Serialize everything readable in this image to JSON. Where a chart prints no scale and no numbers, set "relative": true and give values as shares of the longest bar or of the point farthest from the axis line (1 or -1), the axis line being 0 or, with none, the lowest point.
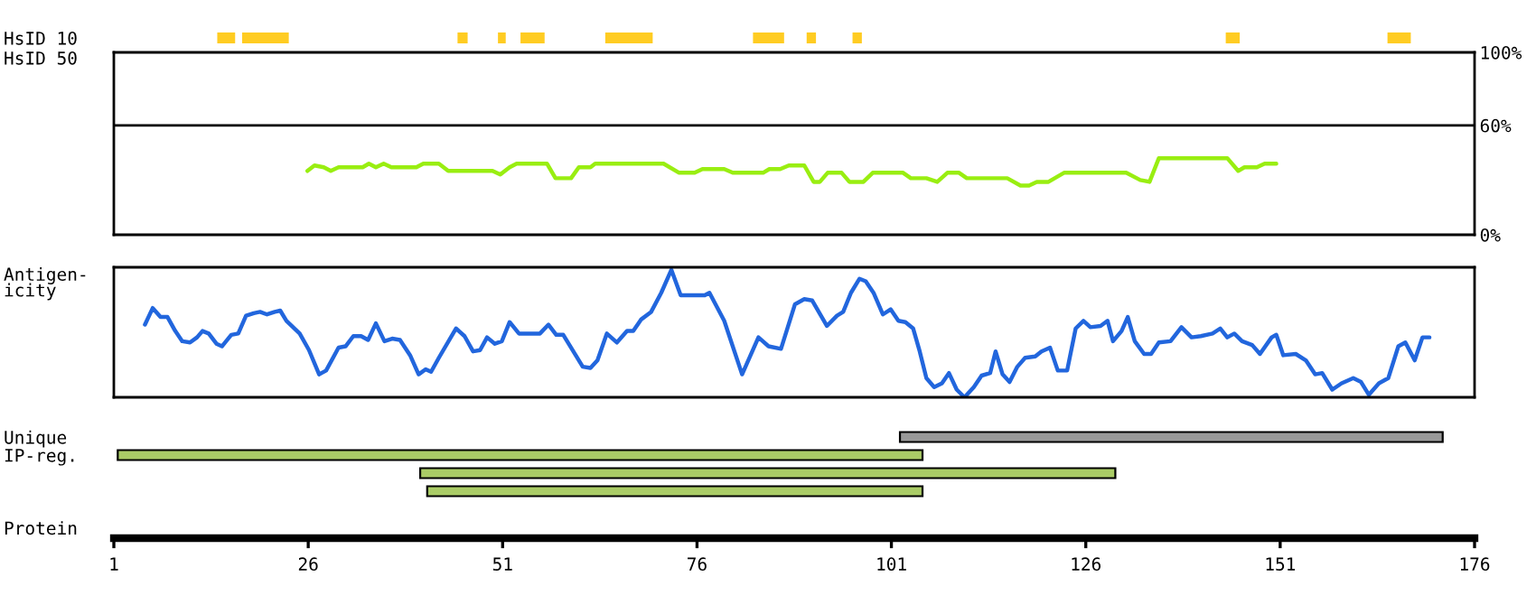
{
  "chart_data": [
    {
      "type": "bar",
      "orientation": "horizontal",
      "categories": [
        "HsID 10",
        "HsID 50"
      ],
      "xlim": [
        1,
        176
      ],
      "tick_labels": "y",
      "series": [
        {
          "color": "#ffcc22",
          "values": [
            2.3,
            null
          ],
          "base": [
            14.3,
            null
          ]
        },
        {
          "color": "#ffcc22",
          "values": [
            6,
            null
          ],
          "base": [
            17.5,
            null
          ]
        },
        {
          "color": "#ffcc22",
          "values": [
            1.3,
            null
          ],
          "base": [
            45.2,
            null
          ]
        },
        {
          "color": "#ffcc22",
          "values": [
            1,
            null
          ],
          "base": [
            50.4,
            null
          ]
        },
        {
          "color": "#ffcc22",
          "values": [
            3.1,
            null
          ],
          "base": [
            53.3,
            null
          ]
        },
        {
          "color": "#ffcc22",
          "values": [
            6.1,
            null
          ],
          "base": [
            64.2,
            null
          ]
        },
        {
          "color": "#ffcc22",
          "values": [
            4,
            null
          ],
          "base": [
            83.2,
            null
          ]
        },
        {
          "color": "#ffcc22",
          "values": [
            1.2,
            null
          ],
          "base": [
            90.1,
            null
          ]
        },
        {
          "color": "#ffcc22",
          "values": [
            1.2,
            null
          ],
          "base": [
            96,
            null
          ]
        },
        {
          "color": "#ffcc22",
          "values": [
            1.8,
            null
          ],
          "base": [
            144,
            null
          ]
        },
        {
          "color": "#ffcc22",
          "values": [
            3,
            null
          ],
          "base": [
            164.8,
            null
          ]
        }
      ]
    },
    {
      "type": "line",
      "xlim": [
        1,
        176
      ],
      "ylim": [
        0,
        100
      ],
      "yticks": [
        {
          "value": 0,
          "label": "0%"
        },
        {
          "value": 60,
          "label": "60%"
        },
        {
          "value": 100,
          "label": "100%"
        }
      ],
      "tick_labels": "y",
      "ref_lines": [
        {
          "axis": "y",
          "value": 60,
          "color": "#000000"
        }
      ],
      "x": [
        25.9,
        26.8,
        28.0,
        28.9,
        29.9,
        33.0,
        33.8,
        34.7,
        35.7,
        36.7,
        39.9,
        40.8,
        42.8,
        44.0,
        49.7,
        50.7,
        51.9,
        52.8,
        56.7,
        57.8,
        59.8,
        60.8,
        62.3,
        62.9,
        71.7,
        73.7,
        75.7,
        76.7,
        79.5,
        80.6,
        84.5,
        85.3,
        86.7,
        87.8,
        89.8,
        91.0,
        91.8,
        92.8,
        94.6,
        95.6,
        97.4,
        98.6,
        102.5,
        103.5,
        105.5,
        106.9,
        108.2,
        109.7,
        110.7,
        115.9,
        117.6,
        118.7,
        119.7,
        121.2,
        123.2,
        131.2,
        133.0,
        134.2,
        135.4,
        144.2,
        145.6,
        146.4,
        148.0,
        149.0,
        150.5
      ],
      "series": [
        {
          "color": "#99ee11",
          "values": [
            35,
            38,
            37,
            35,
            37,
            37,
            39,
            37,
            39,
            37,
            37,
            39,
            39,
            35,
            35,
            33,
            37,
            39,
            39,
            31,
            31,
            37,
            37,
            39,
            39,
            34,
            34,
            36,
            36,
            34,
            34,
            36,
            36,
            38,
            38,
            29,
            29,
            34,
            34,
            29,
            29,
            34,
            34,
            31,
            31,
            29,
            34,
            34,
            31,
            31,
            27,
            27,
            29,
            29,
            34,
            34,
            30,
            29,
            42,
            42,
            35,
            37,
            37,
            39,
            39
          ]
        }
      ]
    },
    {
      "type": "line",
      "relative": true,
      "ylabel": "Antigen-\nicity",
      "xlim": [
        1,
        176
      ],
      "tick_labels": false,
      "x": [
        5.0,
        6.0,
        7.0,
        7.9,
        8.9,
        9.8,
        10.8,
        11.7,
        12.4,
        13.2,
        14.2,
        14.9,
        16.1,
        17.0,
        18.0,
        19.0,
        19.8,
        20.7,
        21.7,
        22.4,
        23.2,
        24.9,
        26.1,
        27.4,
        28.3,
        29.9,
        30.8,
        31.8,
        32.8,
        33.7,
        34.7,
        35.8,
        36.8,
        37.8,
        39.1,
        40.2,
        41.1,
        41.8,
        42.8,
        45.0,
        46.1,
        47.2,
        48.1,
        49.0,
        50.0,
        50.9,
        51.9,
        53.1,
        54.4,
        55.8,
        56.9,
        57.9,
        58.8,
        59.9,
        61.3,
        62.3,
        63.2,
        64.4,
        65.7,
        67.0,
        67.8,
        68.8,
        70.1,
        71.4,
        72.7,
        73.9,
        77.0,
        77.6,
        79.5,
        81.8,
        83.9,
        85.2,
        86.8,
        88.6,
        89.8,
        90.8,
        92.7,
        94.0,
        94.8,
        95.8,
        96.9,
        97.7,
        98.7,
        99.9,
        100.9,
        101.9,
        102.8,
        103.8,
        104.6,
        105.5,
        106.5,
        107.5,
        108.4,
        109.4,
        110.4,
        111.6,
        112.6,
        113.7,
        114.4,
        115.3,
        116.2,
        117.2,
        118.2,
        119.5,
        120.3,
        121.4,
        122.4,
        123.6,
        124.7,
        125.7,
        126.6,
        127.9,
        128.8,
        129.5,
        130.6,
        131.4,
        132.3,
        133.5,
        134.4,
        135.4,
        136.9,
        138.3,
        139.6,
        140.8,
        142.3,
        143.3,
        144.2,
        145.1,
        146.1,
        147.4,
        148.4,
        149.9,
        150.5,
        151.4,
        153.0,
        154.3,
        155.5,
        156.4,
        157.7,
        158.9,
        160.4,
        161.4,
        162.4,
        163.7,
        164.9,
        166.2,
        167.1,
        168.3,
        169.3,
        170.2
      ],
      "series": [
        {
          "color": "#2266dd",
          "values": [
            0.57,
            0.7,
            0.63,
            0.63,
            0.52,
            0.44,
            0.43,
            0.47,
            0.52,
            0.5,
            0.42,
            0.4,
            0.49,
            0.5,
            0.64,
            0.66,
            0.67,
            0.65,
            0.67,
            0.68,
            0.6,
            0.5,
            0.37,
            0.18,
            0.21,
            0.39,
            0.4,
            0.48,
            0.48,
            0.45,
            0.58,
            0.44,
            0.46,
            0.45,
            0.33,
            0.18,
            0.22,
            0.2,
            0.31,
            0.54,
            0.48,
            0.36,
            0.37,
            0.47,
            0.42,
            0.44,
            0.59,
            0.5,
            0.5,
            0.5,
            0.57,
            0.49,
            0.49,
            0.38,
            0.24,
            0.23,
            0.29,
            0.5,
            0.43,
            0.52,
            0.52,
            0.61,
            0.67,
            0.82,
            1.0,
            0.8,
            0.8,
            0.82,
            0.6,
            0.18,
            0.47,
            0.4,
            0.38,
            0.73,
            0.77,
            0.76,
            0.56,
            0.64,
            0.67,
            0.82,
            0.93,
            0.91,
            0.82,
            0.65,
            0.69,
            0.6,
            0.59,
            0.54,
            0.37,
            0.15,
            0.08,
            0.11,
            0.19,
            0.06,
            0,
            0.08,
            0.17,
            0.19,
            0.36,
            0.18,
            0.12,
            0.24,
            0.31,
            0.32,
            0.36,
            0.39,
            0.21,
            0.21,
            0.54,
            0.6,
            0.55,
            0.56,
            0.6,
            0.44,
            0.52,
            0.63,
            0.44,
            0.34,
            0.34,
            0.43,
            0.44,
            0.55,
            0.47,
            0.48,
            0.5,
            0.54,
            0.47,
            0.5,
            0.44,
            0.41,
            0.34,
            0.47,
            0.49,
            0.33,
            0.34,
            0.29,
            0.18,
            0.19,
            0.06,
            0.11,
            0.15,
            0.12,
            0.02,
            0.11,
            0.15,
            0.4,
            0.43,
            0.29,
            0.47,
            0.47
          ]
        }
      ]
    },
    {
      "type": "bar",
      "orientation": "horizontal",
      "categories": [
        "Unique",
        "IP-reg.",
        null,
        null
      ],
      "values": [
        69.8,
        103.5,
        89.4,
        63.7
      ],
      "base": [
        102.1,
        1.5,
        40.4,
        41.3
      ],
      "colors": [
        "#999999",
        "#aacc66",
        "#aacc66",
        "#aacc66"
      ],
      "xlabel": "Protein",
      "xlim": [
        1,
        176
      ],
      "xticks": [
        1,
        26,
        51,
        76,
        101,
        126,
        151,
        176
      ]
    }
  ]
}
